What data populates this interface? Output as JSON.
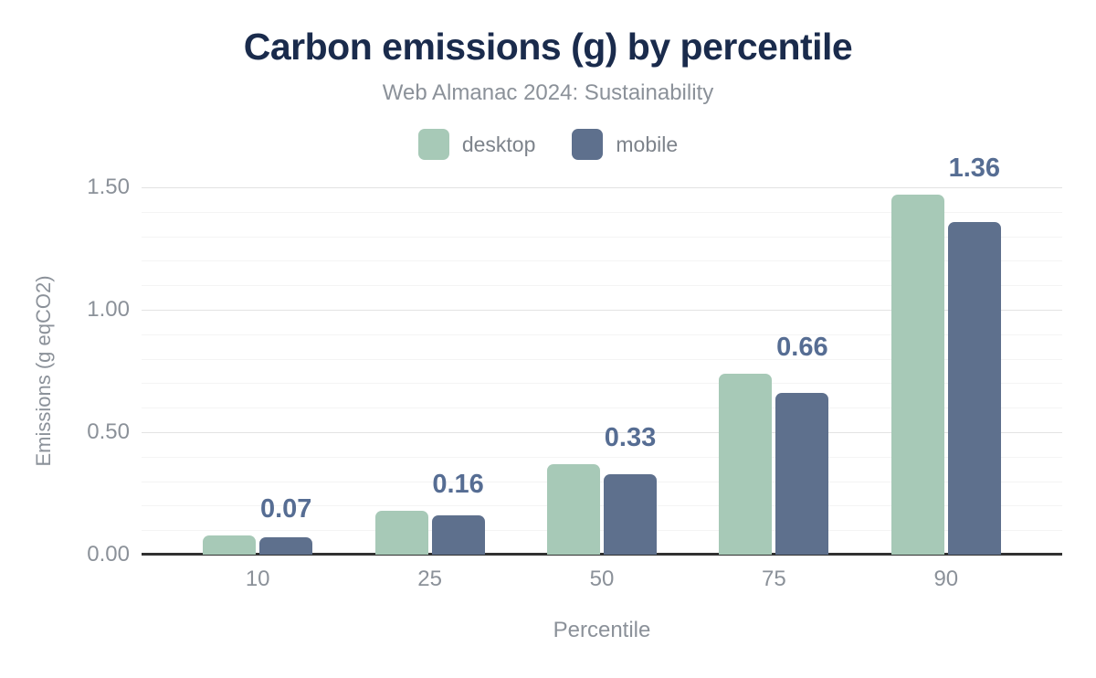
{
  "colors": {
    "title": "#1a2b4c",
    "muted_text": "#8b9199",
    "legend_text": "#7d838b",
    "value_label": "#566d93",
    "gridline_major": "#e3e3e3",
    "gridline_minor": "#f4f4f4",
    "axis_line": "#313131",
    "desktop": "#a7c9b7",
    "mobile": "#5e708d"
  },
  "chart_data": {
    "type": "bar",
    "title": "Carbon emissions (g) by percentile",
    "subtitle": "Web Almanac 2024: Sustainability",
    "xlabel": "Percentile",
    "ylabel": "Emissions (g eqCO2)",
    "categories": [
      "10",
      "25",
      "50",
      "75",
      "90"
    ],
    "series": [
      {
        "name": "desktop",
        "color": "#a7c9b7",
        "values": [
          0.08,
          0.18,
          0.37,
          0.74,
          1.47
        ]
      },
      {
        "name": "mobile",
        "color": "#5e708d",
        "values": [
          0.07,
          0.16,
          0.33,
          0.66,
          1.36
        ]
      }
    ],
    "bar_labels": [
      "0.07",
      "0.16",
      "0.33",
      "0.66",
      "1.36"
    ],
    "ylim": [
      0,
      1.5
    ],
    "yticks": [
      {
        "value": 0,
        "label": "0.00"
      },
      {
        "value": 0.5,
        "label": "0.50"
      },
      {
        "value": 1,
        "label": "1.00"
      },
      {
        "value": 1.5,
        "label": "1.50"
      }
    ],
    "minor_tick_step": 0.1,
    "grid": true,
    "legend_position": "top"
  }
}
